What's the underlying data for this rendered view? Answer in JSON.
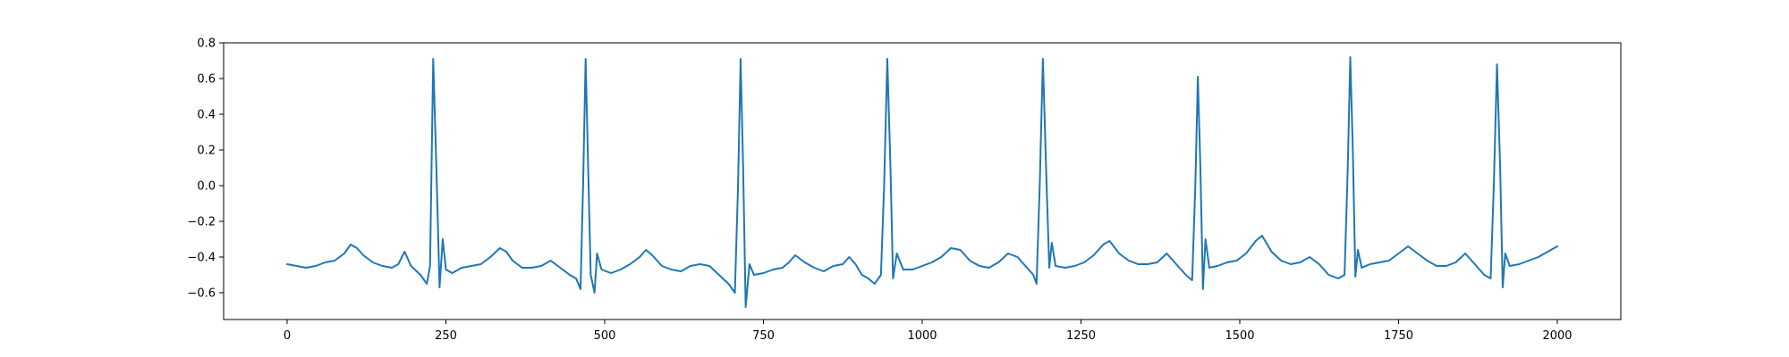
{
  "chart_data": {
    "type": "line",
    "title": "",
    "xlabel": "",
    "ylabel": "",
    "xlim": [
      -100,
      2100
    ],
    "ylim": [
      -0.75,
      0.8
    ],
    "x_ticks": [
      0,
      250,
      500,
      750,
      1000,
      1250,
      1500,
      1750,
      2000
    ],
    "x_tick_labels": [
      "0",
      "250",
      "500",
      "750",
      "1000",
      "1250",
      "1500",
      "1750",
      "2000"
    ],
    "y_ticks": [
      -0.6,
      -0.4,
      -0.2,
      0.0,
      0.2,
      0.4,
      0.6,
      0.8
    ],
    "y_tick_labels": [
      "−0.6",
      "−0.4",
      "−0.2",
      "0.0",
      "0.2",
      "0.4",
      "0.6",
      "0.8"
    ],
    "grid": false,
    "legend": "none",
    "series": [
      {
        "color": "#1f77b4",
        "points": [
          [
            0,
            -0.44
          ],
          [
            15,
            -0.45
          ],
          [
            30,
            -0.46
          ],
          [
            45,
            -0.45
          ],
          [
            60,
            -0.43
          ],
          [
            75,
            -0.42
          ],
          [
            90,
            -0.38
          ],
          [
            100,
            -0.33
          ],
          [
            110,
            -0.35
          ],
          [
            120,
            -0.39
          ],
          [
            135,
            -0.43
          ],
          [
            150,
            -0.45
          ],
          [
            165,
            -0.46
          ],
          [
            175,
            -0.44
          ],
          [
            185,
            -0.37
          ],
          [
            195,
            -0.45
          ],
          [
            210,
            -0.5
          ],
          [
            220,
            -0.55
          ],
          [
            225,
            -0.45
          ],
          [
            230,
            0.71
          ],
          [
            235,
            0.1
          ],
          [
            240,
            -0.57
          ],
          [
            245,
            -0.3
          ],
          [
            250,
            -0.47
          ],
          [
            260,
            -0.49
          ],
          [
            275,
            -0.46
          ],
          [
            290,
            -0.45
          ],
          [
            305,
            -0.44
          ],
          [
            320,
            -0.4
          ],
          [
            335,
            -0.35
          ],
          [
            345,
            -0.37
          ],
          [
            355,
            -0.42
          ],
          [
            370,
            -0.46
          ],
          [
            385,
            -0.46
          ],
          [
            400,
            -0.45
          ],
          [
            415,
            -0.42
          ],
          [
            430,
            -0.46
          ],
          [
            445,
            -0.5
          ],
          [
            455,
            -0.52
          ],
          [
            462,
            -0.58
          ],
          [
            466,
            0.0
          ],
          [
            470,
            0.71
          ],
          [
            474,
            0.1
          ],
          [
            478,
            -0.5
          ],
          [
            484,
            -0.6
          ],
          [
            488,
            -0.38
          ],
          [
            495,
            -0.47
          ],
          [
            510,
            -0.49
          ],
          [
            525,
            -0.47
          ],
          [
            540,
            -0.44
          ],
          [
            555,
            -0.4
          ],
          [
            565,
            -0.36
          ],
          [
            575,
            -0.39
          ],
          [
            590,
            -0.45
          ],
          [
            605,
            -0.47
          ],
          [
            620,
            -0.48
          ],
          [
            635,
            -0.45
          ],
          [
            650,
            -0.44
          ],
          [
            665,
            -0.45
          ],
          [
            680,
            -0.5
          ],
          [
            695,
            -0.55
          ],
          [
            705,
            -0.6
          ],
          [
            710,
            0.0
          ],
          [
            714,
            0.71
          ],
          [
            718,
            0.1
          ],
          [
            722,
            -0.68
          ],
          [
            728,
            -0.44
          ],
          [
            735,
            -0.5
          ],
          [
            750,
            -0.49
          ],
          [
            765,
            -0.47
          ],
          [
            780,
            -0.46
          ],
          [
            790,
            -0.43
          ],
          [
            800,
            -0.39
          ],
          [
            815,
            -0.43
          ],
          [
            830,
            -0.46
          ],
          [
            845,
            -0.48
          ],
          [
            860,
            -0.45
          ],
          [
            875,
            -0.44
          ],
          [
            885,
            -0.4
          ],
          [
            895,
            -0.44
          ],
          [
            905,
            -0.5
          ],
          [
            915,
            -0.52
          ],
          [
            925,
            -0.55
          ],
          [
            935,
            -0.5
          ],
          [
            940,
            0.0
          ],
          [
            945,
            0.71
          ],
          [
            950,
            0.1
          ],
          [
            954,
            -0.52
          ],
          [
            960,
            -0.38
          ],
          [
            970,
            -0.47
          ],
          [
            985,
            -0.47
          ],
          [
            1000,
            -0.45
          ],
          [
            1015,
            -0.43
          ],
          [
            1030,
            -0.4
          ],
          [
            1045,
            -0.35
          ],
          [
            1060,
            -0.36
          ],
          [
            1075,
            -0.42
          ],
          [
            1090,
            -0.45
          ],
          [
            1105,
            -0.46
          ],
          [
            1120,
            -0.43
          ],
          [
            1135,
            -0.38
          ],
          [
            1150,
            -0.4
          ],
          [
            1165,
            -0.46
          ],
          [
            1175,
            -0.5
          ],
          [
            1180,
            -0.55
          ],
          [
            1185,
            0.0
          ],
          [
            1190,
            0.71
          ],
          [
            1195,
            0.1
          ],
          [
            1200,
            -0.46
          ],
          [
            1204,
            -0.32
          ],
          [
            1210,
            -0.45
          ],
          [
            1225,
            -0.46
          ],
          [
            1240,
            -0.45
          ],
          [
            1255,
            -0.43
          ],
          [
            1270,
            -0.39
          ],
          [
            1285,
            -0.33
          ],
          [
            1295,
            -0.31
          ],
          [
            1310,
            -0.38
          ],
          [
            1325,
            -0.42
          ],
          [
            1340,
            -0.44
          ],
          [
            1355,
            -0.44
          ],
          [
            1370,
            -0.43
          ],
          [
            1385,
            -0.38
          ],
          [
            1400,
            -0.44
          ],
          [
            1415,
            -0.5
          ],
          [
            1425,
            -0.53
          ],
          [
            1430,
            0.0
          ],
          [
            1434,
            0.61
          ],
          [
            1438,
            0.1
          ],
          [
            1442,
            -0.58
          ],
          [
            1446,
            -0.3
          ],
          [
            1452,
            -0.46
          ],
          [
            1465,
            -0.45
          ],
          [
            1480,
            -0.43
          ],
          [
            1495,
            -0.42
          ],
          [
            1510,
            -0.38
          ],
          [
            1525,
            -0.31
          ],
          [
            1535,
            -0.28
          ],
          [
            1550,
            -0.37
          ],
          [
            1565,
            -0.42
          ],
          [
            1580,
            -0.44
          ],
          [
            1595,
            -0.43
          ],
          [
            1610,
            -0.4
          ],
          [
            1625,
            -0.44
          ],
          [
            1640,
            -0.5
          ],
          [
            1655,
            -0.52
          ],
          [
            1665,
            -0.5
          ],
          [
            1670,
            0.1
          ],
          [
            1674,
            0.72
          ],
          [
            1678,
            0.2
          ],
          [
            1682,
            -0.51
          ],
          [
            1686,
            -0.36
          ],
          [
            1692,
            -0.46
          ],
          [
            1705,
            -0.44
          ],
          [
            1720,
            -0.43
          ],
          [
            1735,
            -0.42
          ],
          [
            1750,
            -0.38
          ],
          [
            1765,
            -0.34
          ],
          [
            1780,
            -0.38
          ],
          [
            1795,
            -0.42
          ],
          [
            1810,
            -0.45
          ],
          [
            1825,
            -0.45
          ],
          [
            1840,
            -0.43
          ],
          [
            1855,
            -0.38
          ],
          [
            1870,
            -0.44
          ],
          [
            1885,
            -0.5
          ],
          [
            1895,
            -0.52
          ],
          [
            1900,
            0.0
          ],
          [
            1905,
            0.68
          ],
          [
            1910,
            0.1
          ],
          [
            1914,
            -0.57
          ],
          [
            1918,
            -0.38
          ],
          [
            1925,
            -0.45
          ],
          [
            1940,
            -0.44
          ],
          [
            1955,
            -0.42
          ],
          [
            1970,
            -0.4
          ],
          [
            1985,
            -0.37
          ],
          [
            2000,
            -0.34
          ]
        ]
      }
    ]
  }
}
